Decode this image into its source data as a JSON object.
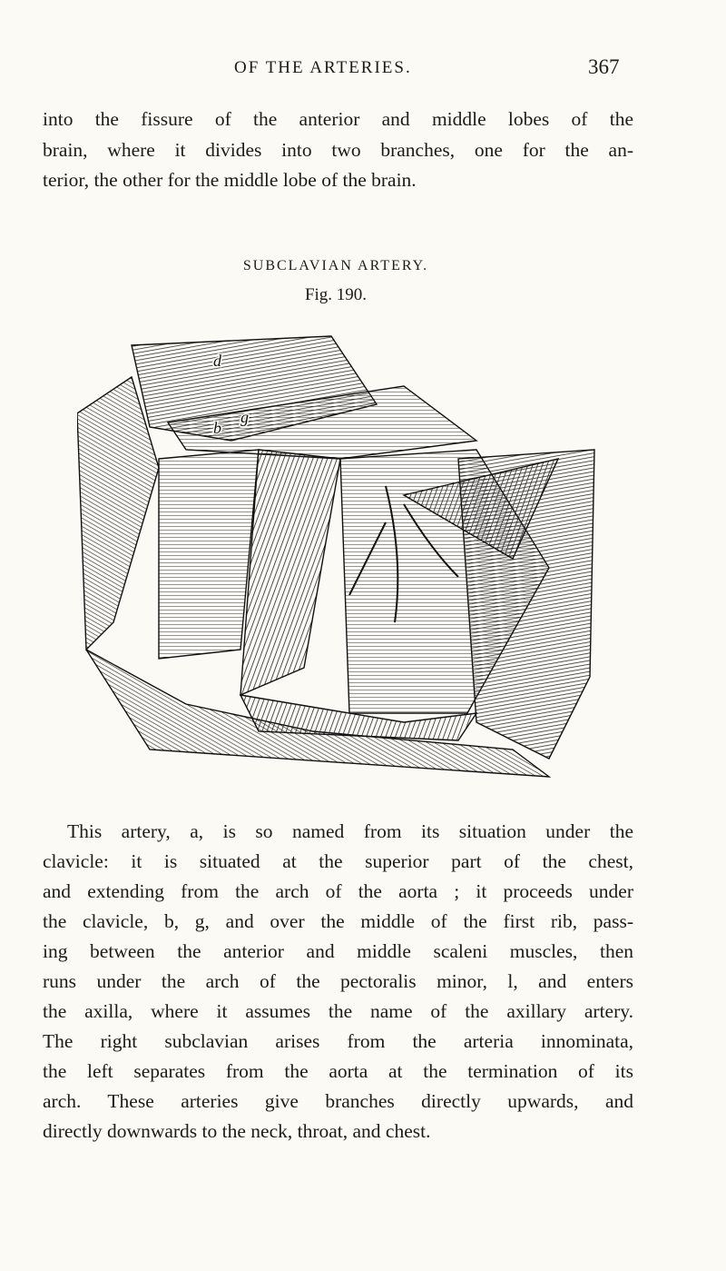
{
  "header": {
    "title": "OF THE ARTERIES.",
    "page_number": "367"
  },
  "paragraphs": [
    {
      "lines": [
        "into the fissure of the anterior and middle lobes of the",
        "brain, where it divides into two branches, one for the an-",
        "terior, the other for the middle lobe of the brain."
      ]
    },
    {
      "lines": [
        "This artery, a, is so named from its situation under the",
        "clavicle: it is situated at the superior part of the chest,",
        "and extending from the arch of the aorta ; it proceeds under",
        "the clavicle, b, g, and over the middle of the first rib, pass-",
        "ing between the anterior and middle scaleni muscles, then",
        "runs under the arch of the pectoralis minor, l, and enters",
        "the axilla, where it assumes the name of the axillary artery.",
        "The right subclavian arises from the arteria innominata,",
        "the left separates from the aorta at the termination of its",
        "arch. These arteries give branches directly upwards, and",
        "directly downwards to the neck, throat, and chest."
      ]
    }
  ],
  "figure": {
    "title": "SUBCLAVIAN ARTERY.",
    "caption": "Fig. 190.",
    "labels": [
      "d",
      "b",
      "g"
    ]
  }
}
